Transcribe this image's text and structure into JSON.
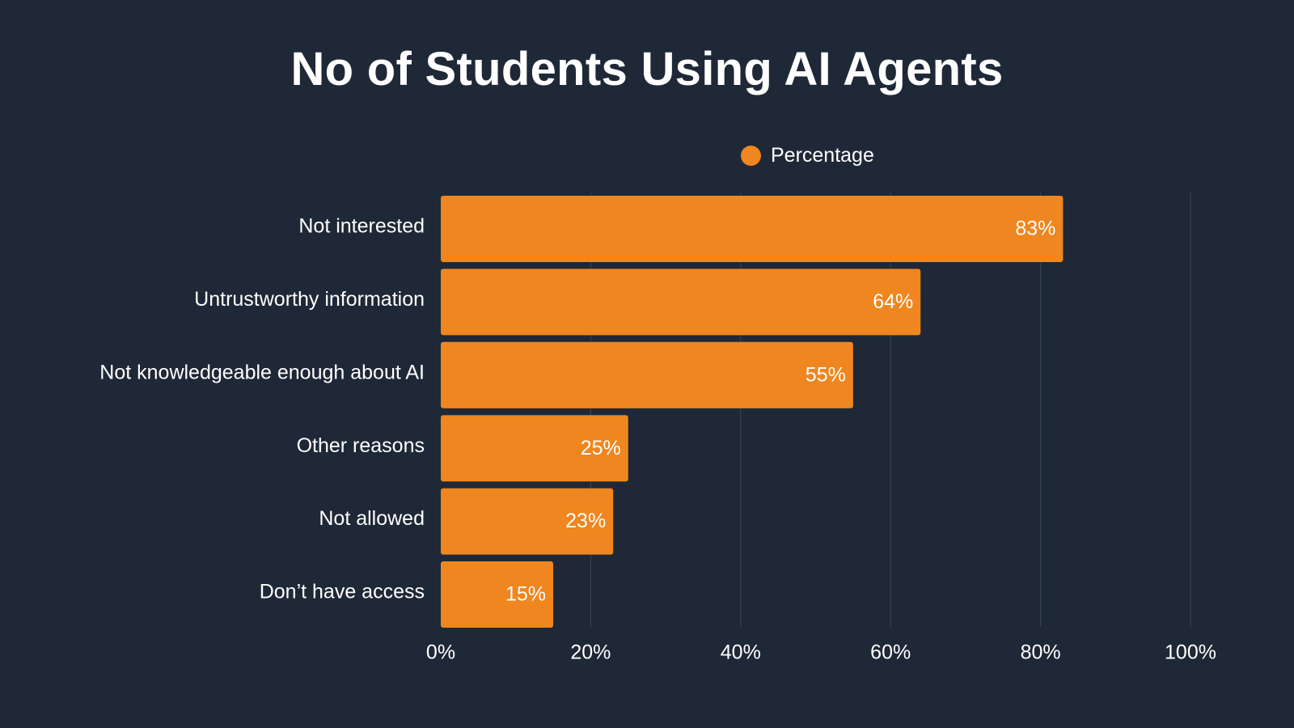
{
  "chart_data": {
    "type": "bar",
    "orientation": "horizontal",
    "title": "No of Students Using AI Agents",
    "categories": [
      "Not interested",
      "Untrustworthy information",
      "Not knowledgeable enough about AI",
      "Other reasons",
      "Not allowed",
      "Don’t have access"
    ],
    "series": [
      {
        "name": "Percentage",
        "values": [
          83,
          64,
          55,
          25,
          23,
          15
        ],
        "labels": [
          "83%",
          "64%",
          "55%",
          "25%",
          "23%",
          "15%"
        ]
      }
    ],
    "xlim": [
      0,
      100
    ],
    "x_ticks": [
      0,
      20,
      40,
      60,
      80,
      100
    ],
    "x_tick_labels": [
      "0%",
      "20%",
      "40%",
      "60%",
      "80%",
      "100%"
    ],
    "xlabel": "",
    "ylabel": "",
    "grid": "vertical",
    "legend_position": "top",
    "colors": {
      "bar": "#ef861f",
      "background": "#1f2837",
      "grid": "#3a4556",
      "text": "#ffffff"
    }
  }
}
